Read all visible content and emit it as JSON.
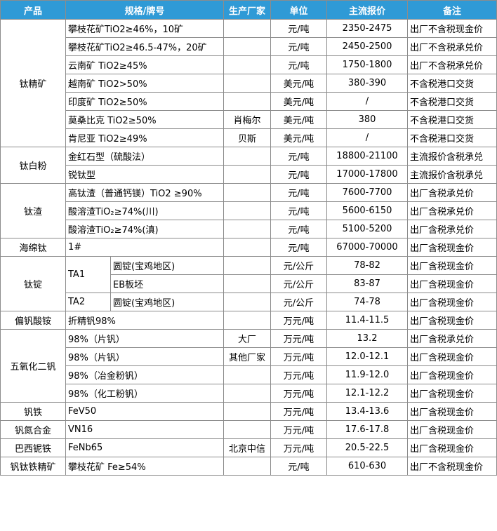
{
  "header": [
    "产品",
    "规格/牌号",
    "生产厂家",
    "单位",
    "主流报价",
    "备注"
  ],
  "groups": [
    {
      "product": "钛精矿",
      "rows": [
        {
          "spec": "攀枝花矿TiO2≥46%，10矿",
          "unit": "元/吨",
          "price": "2350-2475",
          "note": "出厂不含税现金价"
        },
        {
          "spec": "攀枝花矿TiO2≥46.5-47%，20矿",
          "unit": "元/吨",
          "price": "2450-2500",
          "note": "出厂不含税承兑价"
        },
        {
          "spec": "云南矿 TiO2≥45%",
          "unit": "元/吨",
          "price": "1750-1800",
          "note": "出厂不含税承兑价"
        },
        {
          "spec": "越南矿 TiO2>50%",
          "unit": "美元/吨",
          "price": "380-390",
          "note": "不含税港口交货"
        },
        {
          "spec": "印度矿 TiO2≥50%",
          "unit": "美元/吨",
          "price": "/",
          "note": "不含税港口交货"
        },
        {
          "spec": "莫桑比克 TiO2≥50%",
          "producer": "肖梅尔",
          "unit": "美元/吨",
          "price": "380",
          "note": "不含税港口交货"
        },
        {
          "spec": "肯尼亚 TiO2≥49%",
          "producer": "贝斯",
          "unit": "美元/吨",
          "price": "/",
          "note": "不含税港口交货"
        }
      ]
    },
    {
      "product": "钛白粉",
      "rows": [
        {
          "spec": "金红石型（硫酸法）",
          "unit": "元/吨",
          "price": "18800-21100",
          "note": "主流报价含税承兑"
        },
        {
          "spec": "锐钛型",
          "unit": "元/吨",
          "price": "17000-17800",
          "note": "主流报价含税承兑"
        }
      ]
    },
    {
      "product": "钛渣",
      "rows": [
        {
          "spec": "高钛渣（普通钙镁）TiO2 ≥90%",
          "unit": "元/吨",
          "price": "7600-7700",
          "note": "出厂含税承兑价"
        },
        {
          "spec": "酸溶渣TiO₂≥74%(川)",
          "unit": "元/吨",
          "price": "5600-6150",
          "note": "出厂含税承兑价"
        },
        {
          "spec": "酸溶渣TiO₂≥74%(滇)",
          "unit": "元/吨",
          "price": "5100-5200",
          "note": "出厂含税承兑价"
        }
      ]
    },
    {
      "product": "海绵钛",
      "rows": [
        {
          "spec": "1#",
          "unit": "元/吨",
          "price": "67000-70000",
          "note": "出厂含税现金价"
        }
      ]
    },
    {
      "product": "钛锭",
      "grades": [
        {
          "grade": "TA1",
          "rows": [
            {
              "spec": "圆锭(宝鸡地区)",
              "unit": "元/公斤",
              "price": "78-82",
              "note": "出厂含税现金价"
            },
            {
              "spec": "EB板坯",
              "unit": "元/公斤",
              "price": "83-87",
              "note": "出厂含税现金价"
            }
          ]
        },
        {
          "grade": "TA2",
          "rows": [
            {
              "spec": "圆锭(宝鸡地区)",
              "unit": "元/公斤",
              "price": "74-78",
              "note": "出厂含税现金价"
            }
          ]
        }
      ]
    },
    {
      "product": "偏钒酸铵",
      "rows": [
        {
          "spec": "折精钒98%",
          "unit": "万元/吨",
          "price": "11.4-11.5",
          "note": "出厂含税现金价"
        }
      ]
    },
    {
      "product": "五氧化二钒",
      "rows": [
        {
          "spec": "98%（片钒）",
          "producer": "大厂",
          "unit": "万元/吨",
          "price": "13.2",
          "note": "出厂含税承兑价"
        },
        {
          "spec": "98%（片钒）",
          "producer": "其他厂家",
          "unit": "万元/吨",
          "price": "12.0-12.1",
          "note": "出厂含税现金价"
        },
        {
          "spec": "98%（冶金粉钒）",
          "unit": "万元/吨",
          "price": "11.9-12.0",
          "note": "出厂含税现金价"
        },
        {
          "spec": "98%（化工粉钒）",
          "unit": "万元/吨",
          "price": "12.1-12.2",
          "note": "出厂含税现金价"
        }
      ]
    },
    {
      "product": "钒铁",
      "rows": [
        {
          "spec": "FeV50",
          "unit": "万元/吨",
          "price": "13.4-13.6",
          "note": "出厂含税现金价"
        }
      ]
    },
    {
      "product": "钒氮合金",
      "rows": [
        {
          "spec": "VN16",
          "unit": "万元/吨",
          "price": "17.6-17.8",
          "note": "出厂含税现金价"
        }
      ]
    },
    {
      "product": "巴西铌铁",
      "rows": [
        {
          "spec": "FeNb65",
          "producer": "北京中信",
          "unit": "万元/吨",
          "price": "20.5-22.5",
          "note": "出厂含税现金价"
        }
      ]
    },
    {
      "product": "钒钛铁精矿",
      "rows": [
        {
          "spec": "攀枝花矿 Fe≥54%",
          "unit": "元/吨",
          "price": "610-630",
          "note": "出厂不含税现金价"
        }
      ]
    }
  ]
}
